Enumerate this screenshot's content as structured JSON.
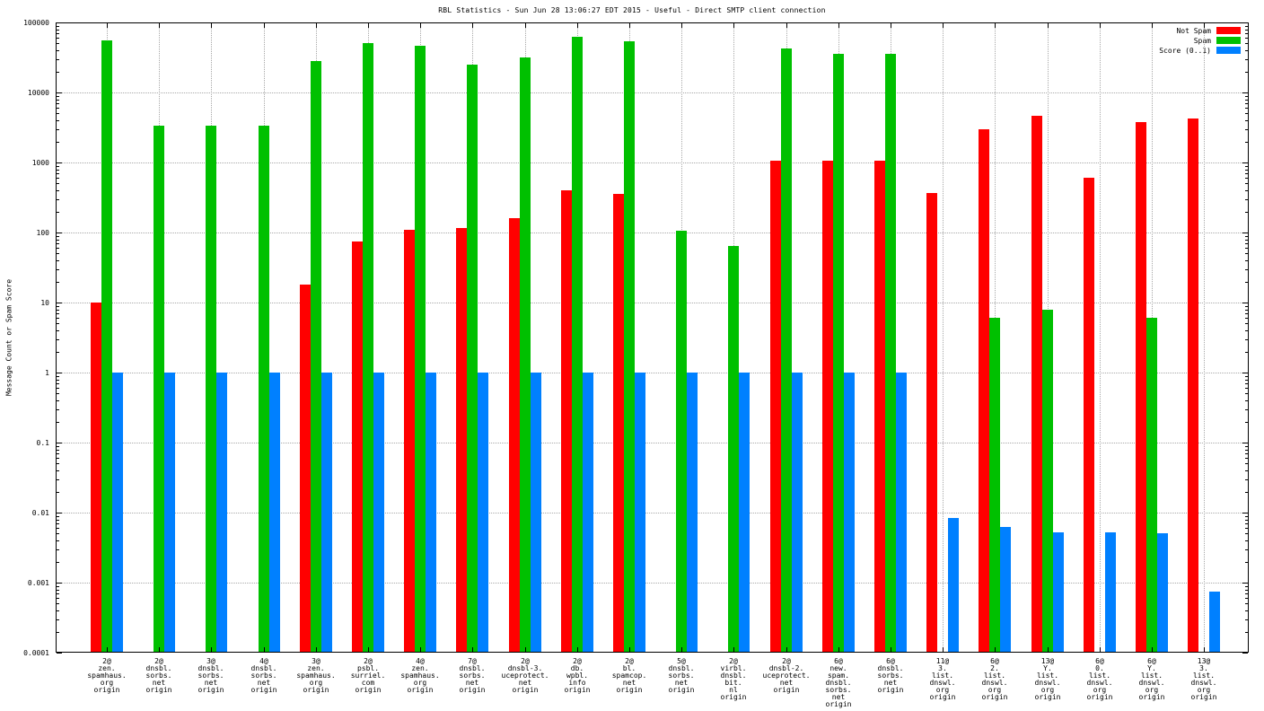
{
  "chart_data": {
    "type": "bar",
    "title": "RBL Statistics - Sun Jun 28 13:06:27 EDT 2015 - Useful - Direct SMTP client connection",
    "ylabel": "Message Count or Spam Score",
    "xlabel": "",
    "yscale": "log",
    "ylim": [
      0.0001,
      100000
    ],
    "ytick_labels": [
      "100000",
      "10000",
      "1000",
      "100",
      "10",
      "1",
      "0.1",
      "0.01",
      "0.001",
      "0.0001"
    ],
    "grid": true,
    "legend_position": "top-right",
    "colors": {
      "not_spam": "#ff0000",
      "spam": "#00c000",
      "score": "#0080ff",
      "gridline": "#a8a8a8",
      "axis": "#000000",
      "background": "#ffffff"
    },
    "legend": [
      {
        "label": "Not Spam",
        "color": "#ff0000"
      },
      {
        "label": "Spam",
        "color": "#00c000"
      },
      {
        "label": "Score (0..1)",
        "color": "#0080ff"
      }
    ],
    "categories": [
      [
        "2@",
        "zen.",
        "spamhaus.",
        "org",
        "origin"
      ],
      [
        "2@",
        "dnsbl.",
        "sorbs.",
        "net",
        "origin"
      ],
      [
        "3@",
        "dnsbl.",
        "sorbs.",
        "net",
        "origin"
      ],
      [
        "4@",
        "dnsbl.",
        "sorbs.",
        "net",
        "origin"
      ],
      [
        "3@",
        "zen.",
        "spamhaus.",
        "org",
        "origin"
      ],
      [
        "2@",
        "psbl.",
        "surriel.",
        "com",
        "origin"
      ],
      [
        "4@",
        "zen.",
        "spamhaus.",
        "org",
        "origin"
      ],
      [
        "7@",
        "dnsbl.",
        "sorbs.",
        "net",
        "origin"
      ],
      [
        "2@",
        "dnsbl-3.",
        "uceprotect.",
        "net",
        "origin"
      ],
      [
        "2@",
        "db.",
        "wpbl.",
        "info",
        "origin"
      ],
      [
        "2@",
        "bl.",
        "spamcop.",
        "net",
        "origin"
      ],
      [
        "5@",
        "dnsbl.",
        "sorbs.",
        "net",
        "origin"
      ],
      [
        "2@",
        "virbl.",
        "dnsbl.",
        "bit.",
        "nl",
        "origin"
      ],
      [
        "2@",
        "dnsbl-2.",
        "uceprotect.",
        "net",
        "origin"
      ],
      [
        "6@",
        "new.",
        "spam.",
        "dnsbl.",
        "sorbs.",
        "net",
        "origin"
      ],
      [
        "6@",
        "dnsbl.",
        "sorbs.",
        "net",
        "origin"
      ],
      [
        "11@",
        "3.",
        "list.",
        "dnswl.",
        "org",
        "origin"
      ],
      [
        "6@",
        "2.",
        "list.",
        "dnswl.",
        "org",
        "origin"
      ],
      [
        "13@",
        "Y.",
        "list.",
        "dnswl.",
        "org",
        "origin"
      ],
      [
        "6@",
        "0.",
        "list.",
        "dnswl.",
        "org",
        "origin"
      ],
      [
        "6@",
        "Y.",
        "list.",
        "dnswl.",
        "org",
        "origin"
      ],
      [
        "13@",
        "3.",
        "list.",
        "dnswl.",
        "org",
        "origin"
      ]
    ],
    "series": [
      {
        "name": "Not Spam",
        "color": "#ff0000",
        "values": [
          10,
          0,
          0,
          0,
          18,
          75,
          110,
          115,
          160,
          400,
          360,
          0,
          0,
          1050,
          1050,
          1050,
          370,
          3000,
          4700,
          600,
          3800,
          4200
        ]
      },
      {
        "name": "Spam",
        "color": "#00c000",
        "values": [
          55000,
          3400,
          3400,
          3400,
          28000,
          50000,
          47000,
          25000,
          32000,
          63000,
          54000,
          105,
          65,
          42000,
          36000,
          36000,
          0,
          6,
          8,
          0,
          6,
          0
        ]
      },
      {
        "name": "Score (0..1)",
        "color": "#0080ff",
        "values": [
          1,
          1,
          1,
          1,
          1,
          1,
          1,
          1,
          1,
          1,
          1,
          1,
          1,
          1,
          1,
          1,
          0.0085,
          0.0062,
          0.0053,
          0.0052,
          0.005,
          0.00075
        ]
      }
    ]
  }
}
